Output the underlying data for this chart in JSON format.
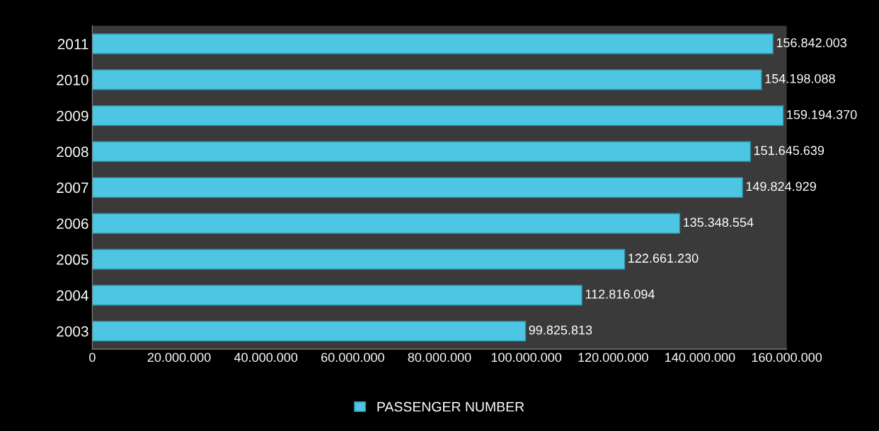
{
  "chart_data": {
    "type": "bar",
    "orientation": "horizontal",
    "categories": [
      "2011",
      "2010",
      "2009",
      "2008",
      "2007",
      "2006",
      "2005",
      "2004",
      "2003"
    ],
    "series": [
      {
        "name": "PASSENGER NUMBER",
        "color": "#4cc6e2",
        "values": [
          156842003,
          154198088,
          159194370,
          151645639,
          149824929,
          135348554,
          122661230,
          112816094,
          99825813
        ],
        "value_labels": [
          "156.842.003",
          "154.198.088",
          "159.194.370",
          "151.645.639",
          "149.824.929",
          "135.348.554",
          "122.661.230",
          "112.816.094",
          "99.825.813"
        ]
      }
    ],
    "xlim": [
      0,
      160000000
    ],
    "xticks": [
      0,
      {
        "value": 20000000,
        "label": "20.000.000"
      },
      {
        "value": 40000000,
        "label": "40.000.000"
      },
      {
        "value": 60000000,
        "label": "60.000.000"
      },
      {
        "value": 80000000,
        "label": "80.000.000"
      },
      {
        "value": 100000000,
        "label": "100.000.000"
      },
      {
        "value": 120000000,
        "label": "120.000.000"
      },
      {
        "value": 140000000,
        "label": "140.000.000"
      },
      {
        "value": 160000000,
        "label": "160.000.000"
      }
    ],
    "grid": false,
    "legend": "bottom"
  }
}
